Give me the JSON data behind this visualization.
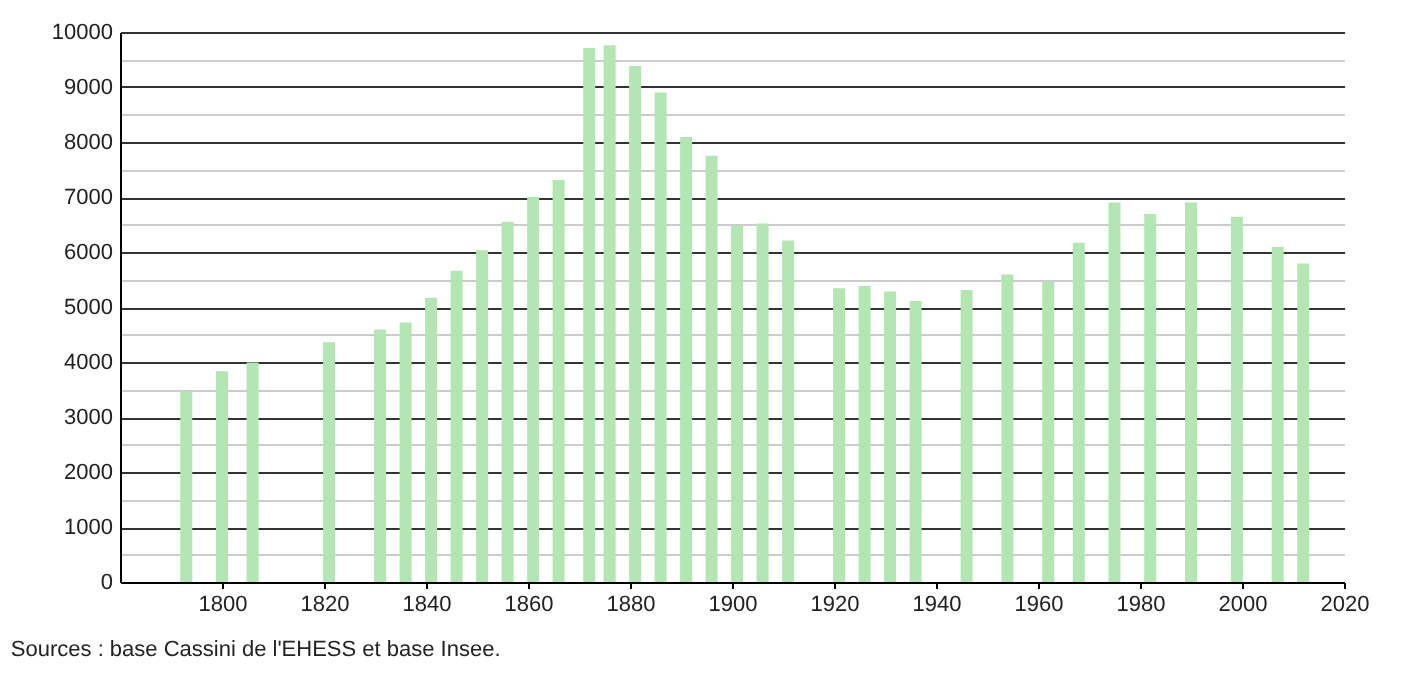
{
  "chart_data": {
    "type": "bar",
    "x": [
      1793,
      1800,
      1806,
      1821,
      1831,
      1836,
      1841,
      1846,
      1851,
      1856,
      1861,
      1866,
      1872,
      1876,
      1881,
      1886,
      1891,
      1896,
      1901,
      1906,
      1911,
      1921,
      1926,
      1931,
      1936,
      1946,
      1954,
      1962,
      1968,
      1975,
      1982,
      1990,
      1999,
      2007,
      2012
    ],
    "values": [
      3470,
      3830,
      3990,
      4360,
      4590,
      4720,
      5170,
      5660,
      6030,
      6550,
      7000,
      7310,
      9710,
      9760,
      9380,
      8900,
      8090,
      7750,
      6480,
      6520,
      6210,
      5340,
      5380,
      5280,
      5110,
      5310,
      5590,
      5460,
      6170,
      6900,
      6690,
      6900,
      6640,
      6090,
      5790
    ],
    "color": "#b3e6b3",
    "xlim": [
      1780,
      2020
    ],
    "xticks": [
      1800,
      1820,
      1840,
      1860,
      1880,
      1900,
      1920,
      1940,
      1960,
      1980,
      2000,
      2020
    ],
    "ylim": [
      0,
      10000
    ],
    "yticks": [
      0,
      {
        "value": 500,
        "label": null
      },
      1000,
      {
        "value": 1500,
        "label": null
      },
      2000,
      {
        "value": 2500,
        "label": null
      },
      3000,
      {
        "value": 3500,
        "label": null
      },
      4000,
      {
        "value": 4500,
        "label": null
      },
      5000,
      {
        "value": 5500,
        "label": null
      },
      6000,
      {
        "value": 6500,
        "label": null
      },
      7000,
      {
        "value": 7500,
        "label": null
      },
      8000,
      {
        "value": 8500,
        "label": null
      },
      9000,
      {
        "value": 9500,
        "label": null
      },
      10000
    ],
    "grid": "y",
    "annotations": [
      "Sources : base Cassini de l'EHESS et base Insee."
    ]
  }
}
